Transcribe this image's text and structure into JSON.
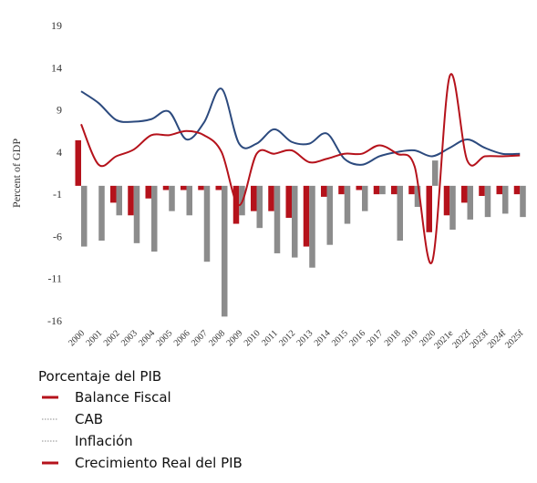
{
  "chart_data": {
    "type": "bar-line",
    "y_label": "Percent of GDP",
    "legend_title": "Porcentaje del PIB",
    "categories": [
      "2000",
      "2001",
      "2002",
      "2003",
      "2004",
      "2005",
      "2006",
      "2007",
      "2008",
      "2009",
      "2010",
      "2011",
      "2012",
      "2013",
      "2014",
      "2015",
      "2016",
      "2017",
      "2018",
      "2019",
      "2020",
      "2021e",
      "2022f",
      "2023f",
      "2024f",
      "2025f"
    ],
    "ylim": [
      -16,
      19
    ],
    "yticks": [
      19,
      14,
      9,
      4,
      -1,
      -6,
      -11,
      -16
    ],
    "series": [
      {
        "name": "Balance Fiscal",
        "kind": "bar",
        "color": "#b5121b",
        "legend_color": "#b5121b",
        "legend_style": "solid",
        "values": [
          5.4,
          0,
          -2,
          -3.5,
          -1.5,
          -0.5,
          -0.5,
          -0.5,
          -0.5,
          -4.5,
          -3,
          -3,
          -3.8,
          -7.2,
          -1.3,
          -1,
          -0.5,
          -1,
          -1,
          -1,
          -5.5,
          -3.5,
          -2,
          -1.2,
          -1,
          -1
        ]
      },
      {
        "name": "CAB",
        "kind": "bar",
        "color": "#8c8c8c",
        "legend_color": "#8c8c8c",
        "legend_style": "dotted",
        "values": [
          -7.2,
          -6.5,
          -3.5,
          -6.8,
          -7.8,
          -3,
          -3.5,
          -9,
          -15.5,
          -3.5,
          -5,
          -8,
          -8.5,
          -9.7,
          -7,
          -4.5,
          -3,
          -1,
          -6.5,
          -2.5,
          3,
          -5.2,
          -4,
          -3.7,
          -3.3,
          -3.7
        ]
      },
      {
        "name": "Inflación",
        "kind": "line",
        "color": "#2c4a7e",
        "legend_color": "#8c8c8c",
        "legend_style": "dotted",
        "values": [
          11.2,
          9.8,
          7.8,
          7.6,
          7.9,
          8.8,
          5.5,
          7.5,
          11.5,
          5,
          5,
          6.7,
          5.2,
          5,
          6.2,
          3.2,
          2.5,
          3.5,
          4,
          4.2,
          3.5,
          4.5,
          5.5,
          4.5,
          3.8,
          3.8
        ]
      },
      {
        "name": "Crecimiento Real del PIB",
        "kind": "line",
        "color": "#b5121b",
        "legend_color": "#b5121b",
        "legend_style": "solid",
        "values": [
          7.3,
          2.5,
          3.5,
          4.3,
          6,
          6,
          6.5,
          6,
          4,
          -2.3,
          3.8,
          3.8,
          4.2,
          2.8,
          3.2,
          3.8,
          3.8,
          4.8,
          3.8,
          2.3,
          -9,
          13,
          3,
          3.5,
          3.5,
          3.6
        ]
      }
    ]
  }
}
